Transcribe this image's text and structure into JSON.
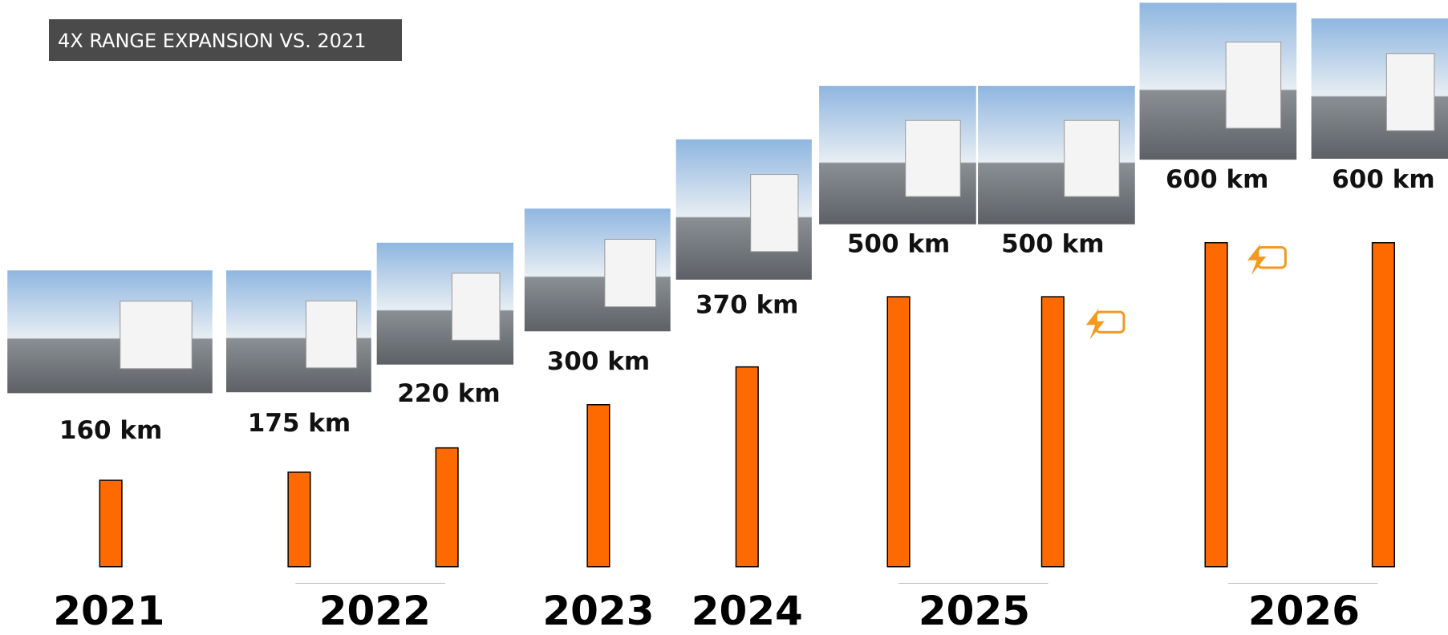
{
  "chart_data": {
    "type": "bar",
    "title": "4X RANGE EXPANSION VS. 2021",
    "color": "#ff6a00",
    "groups": [
      {
        "label": "2021",
        "values": [
          160
        ],
        "value_labels": [
          "160 km"
        ]
      },
      {
        "label": "2022",
        "values": [
          175,
          220
        ],
        "value_labels": [
          "175 km",
          "220 km"
        ]
      },
      {
        "label": "2023",
        "values": [
          300
        ],
        "value_labels": [
          "300 km"
        ]
      },
      {
        "label": "2024",
        "values": [
          370
        ],
        "value_labels": [
          "370 km"
        ]
      },
      {
        "label": "2025",
        "values": [
          500,
          500
        ],
        "value_labels": [
          "500 km",
          "500 km"
        ]
      },
      {
        "label": "2026",
        "values": [
          600,
          600
        ],
        "value_labels": [
          "600 km",
          "600 km"
        ]
      }
    ]
  }
}
